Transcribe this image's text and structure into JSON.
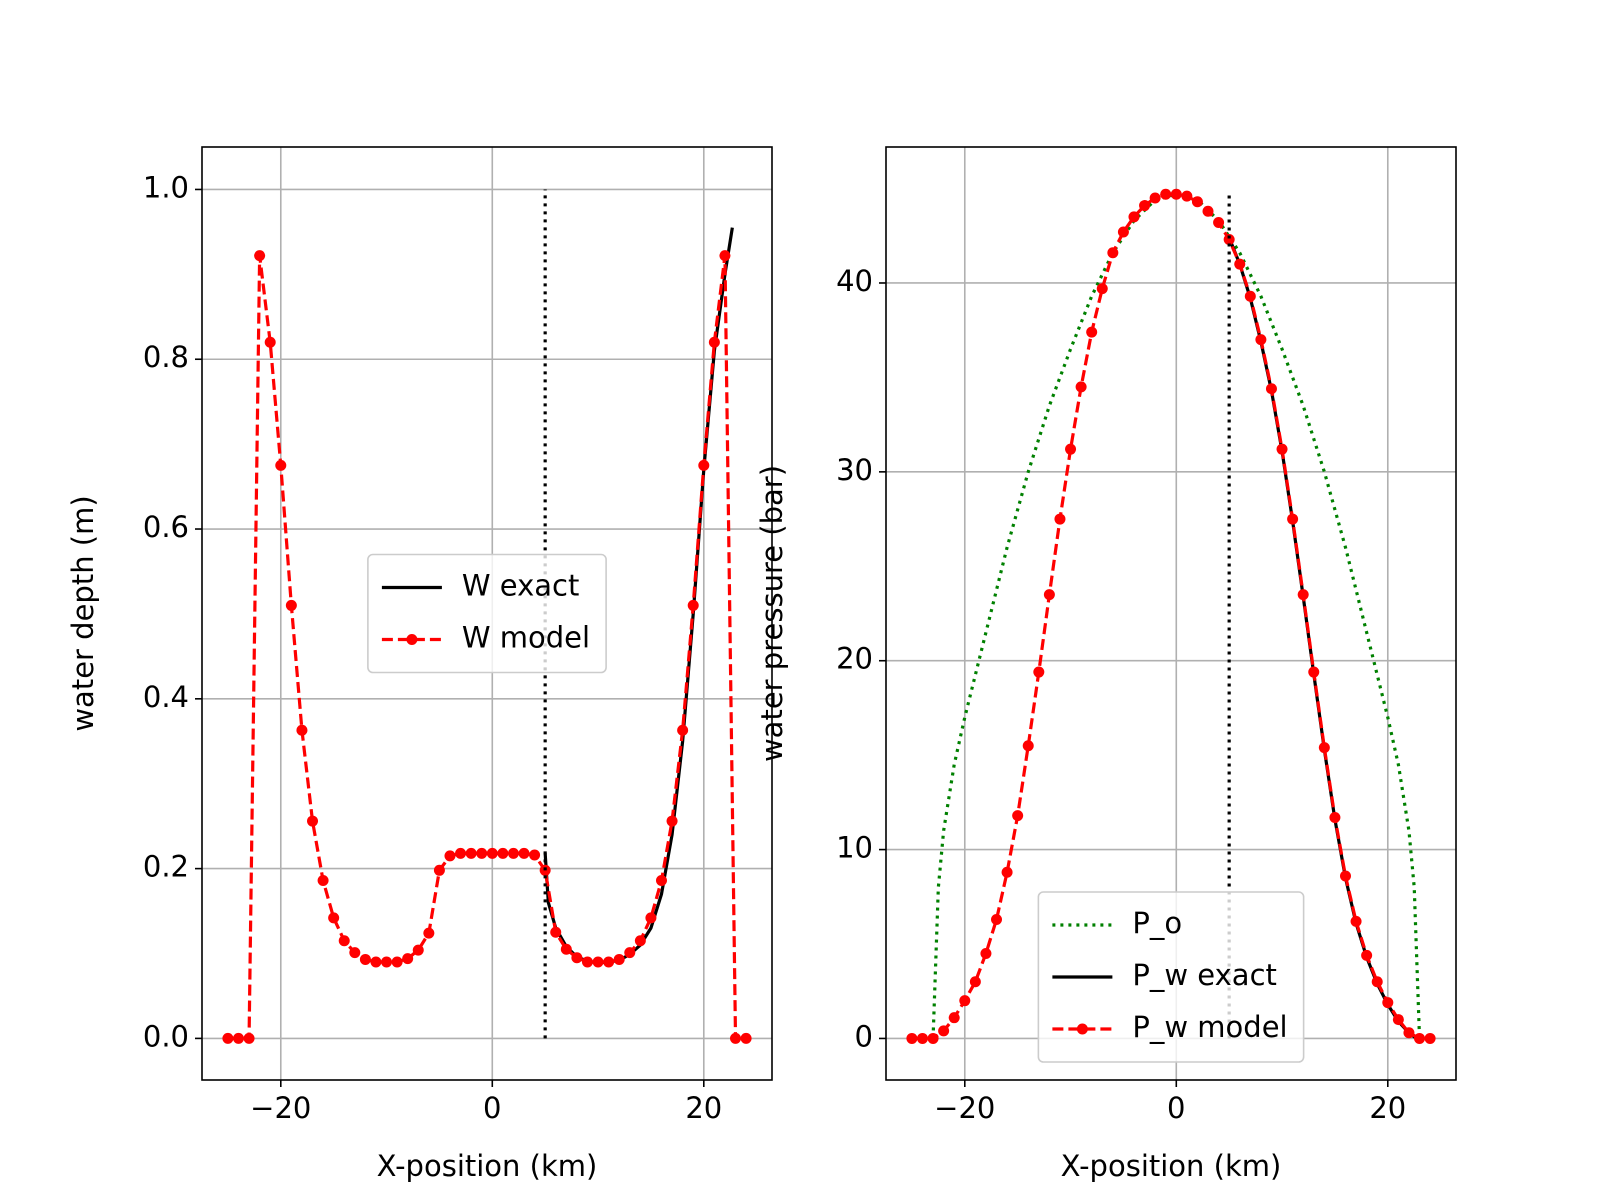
{
  "chart_data": [
    {
      "type": "line",
      "x_label": "X-position (km)",
      "y_label": "water depth (m)",
      "xlim": [
        -27.45,
        26.45
      ],
      "xticks": [
        {
          "value": -20,
          "label": "−20"
        },
        0,
        20
      ],
      "ylim": [
        -0.049,
        1.05
      ],
      "yticks": [
        {
          "value": 0,
          "label": "0.0"
        },
        0.2,
        0.4,
        0.6,
        0.8,
        {
          "value": 1,
          "label": "1.0"
        }
      ],
      "grid": true,
      "legend": "center",
      "series": [
        {
          "name": "W exact",
          "color": "#000000",
          "linestyle": "solid",
          "marker": null,
          "x": [
            5,
            5.3,
            6,
            7,
            8,
            9,
            10,
            11,
            12,
            13,
            14,
            15,
            16,
            17,
            18,
            19,
            20,
            21,
            22,
            22.7
          ],
          "values": [
            0.218,
            0.16,
            0.13,
            0.108,
            0.096,
            0.091,
            0.089,
            0.09,
            0.092,
            0.099,
            0.11,
            0.13,
            0.17,
            0.24,
            0.35,
            0.5,
            0.67,
            0.81,
            0.9,
            0.955
          ]
        },
        {
          "name": "W model",
          "color": "#ff0000",
          "linestyle": "dashed",
          "marker": "o",
          "x": [
            -25,
            -24,
            -23,
            -22,
            -21,
            -20,
            -19,
            -18,
            -17,
            -16,
            -15,
            -14,
            -13,
            -12,
            -11,
            -10,
            -9,
            -8,
            -7,
            -6,
            -5,
            -4,
            -3,
            -2,
            -1,
            0,
            1,
            2,
            3,
            4,
            5,
            6,
            7,
            8,
            9,
            10,
            11,
            12,
            13,
            14,
            15,
            16,
            17,
            18,
            19,
            20,
            21,
            22,
            23,
            24
          ],
          "values": [
            0,
            0,
            0,
            0.922,
            0.82,
            0.675,
            0.51,
            0.363,
            0.256,
            0.186,
            0.142,
            0.115,
            0.101,
            0.093,
            0.09,
            0.09,
            0.09,
            0.094,
            0.104,
            0.124,
            0.198,
            0.215,
            0.218,
            0.218,
            0.218,
            0.218,
            0.218,
            0.218,
            0.218,
            0.216,
            0.198,
            0.125,
            0.105,
            0.095,
            0.09,
            0.09,
            0.09,
            0.093,
            0.101,
            0.115,
            0.142,
            0.186,
            0.256,
            0.363,
            0.51,
            0.675,
            0.82,
            0.922,
            0,
            0
          ]
        }
      ],
      "vlines": [
        {
          "x": 5,
          "ymin": 0,
          "ymax": 1,
          "color": "#000000",
          "linestyle": "dotted"
        }
      ]
    },
    {
      "type": "line",
      "x_label": "X-position (km)",
      "y_label": "water pressure (bar)",
      "xlim": [
        -27.45,
        26.45
      ],
      "xticks": [
        {
          "value": -20,
          "label": "−20"
        },
        0,
        20
      ],
      "ylim": [
        -2.2,
        47.2
      ],
      "yticks": [
        0,
        10,
        20,
        30,
        40
      ],
      "grid": true,
      "legend": "lower center",
      "series": [
        {
          "name": "P_o",
          "color": "#008000",
          "linestyle": "dotted",
          "marker": null,
          "x": [
            -23,
            -22.5,
            -22,
            -21,
            -20,
            -18,
            -16,
            -14,
            -12,
            -10,
            -8,
            -6,
            -4,
            -2,
            0,
            2,
            4,
            6,
            8,
            10,
            12,
            14,
            16,
            18,
            20,
            21,
            22,
            22.5,
            23
          ],
          "values": [
            0,
            8,
            11,
            14.5,
            17,
            21.5,
            26,
            30,
            33.5,
            36.5,
            39.3,
            41.6,
            43.3,
            44.4,
            44.7,
            44.4,
            43.3,
            41.6,
            39.3,
            36.5,
            33.5,
            30,
            26,
            21.5,
            17,
            14.5,
            11,
            8,
            0
          ]
        },
        {
          "name": "P_w exact",
          "color": "#000000",
          "linestyle": "solid",
          "marker": null,
          "x": [
            5,
            6,
            7,
            8,
            9,
            10,
            11,
            12,
            13,
            14,
            15,
            16,
            17,
            18,
            19,
            20,
            21,
            22,
            22.7
          ],
          "values": [
            42.4,
            41.0,
            39.2,
            36.9,
            34.3,
            31.1,
            27.4,
            23.4,
            19.3,
            15.3,
            11.6,
            8.5,
            6.1,
            4.3,
            2.9,
            1.8,
            0.9,
            0.3,
            0
          ]
        },
        {
          "name": "P_w model",
          "color": "#ff0000",
          "linestyle": "dashed",
          "marker": "o",
          "x": [
            -25,
            -24,
            -23,
            -22,
            -21,
            -20,
            -19,
            -18,
            -17,
            -16,
            -15,
            -14,
            -13,
            -12,
            -11,
            -10,
            -9,
            -8,
            -7,
            -6,
            -5,
            -4,
            -3,
            -2,
            -1,
            0,
            1,
            2,
            3,
            4,
            5,
            6,
            7,
            8,
            9,
            10,
            11,
            12,
            13,
            14,
            15,
            16,
            17,
            18,
            19,
            20,
            21,
            22,
            23,
            24
          ],
          "values": [
            0,
            0,
            0,
            0.4,
            1.1,
            2.0,
            3.0,
            4.5,
            6.3,
            8.8,
            11.8,
            15.5,
            19.4,
            23.5,
            27.5,
            31.2,
            34.5,
            37.4,
            39.7,
            41.6,
            42.7,
            43.5,
            44.1,
            44.5,
            44.7,
            44.7,
            44.6,
            44.3,
            43.8,
            43.2,
            42.3,
            41.0,
            39.3,
            37.0,
            34.4,
            31.2,
            27.5,
            23.5,
            19.4,
            15.4,
            11.7,
            8.6,
            6.2,
            4.4,
            3.0,
            1.9,
            1.0,
            0.3,
            0,
            0
          ]
        }
      ],
      "vlines": [
        {
          "x": 5,
          "ymin": 0,
          "ymax": 44.7,
          "color": "#000000",
          "linestyle": "dotted"
        }
      ]
    }
  ]
}
